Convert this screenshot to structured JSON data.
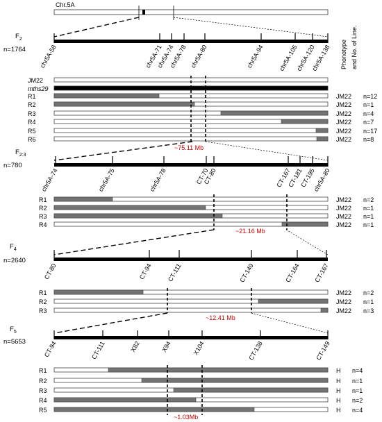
{
  "chromosome": {
    "label": "Chr.5A"
  },
  "headers": {
    "phenotype": "Phonotype",
    "lines": "and No. of Line."
  },
  "panels": [
    {
      "generation": "F",
      "generation_sub": "2",
      "population": "n=1764",
      "markers": [
        "chr5A-58",
        "chr5A-71",
        "chr5A-74",
        "chr5A-78",
        "chr5A-80",
        "chr5A-94",
        "chr5A-105",
        "chr5A-120",
        "chr5A-138"
      ],
      "interval": "~75.11 Mb",
      "rows": [
        {
          "label": "JM22",
          "pheno": "",
          "count": ""
        },
        {
          "label": "mths29",
          "pheno": "",
          "count": "",
          "italic": true
        },
        {
          "label": "R1",
          "pheno": "JM22",
          "count": "n=12"
        },
        {
          "label": "R2",
          "pheno": "JM22",
          "count": "n=1"
        },
        {
          "label": "R3",
          "pheno": "JM22",
          "count": "n=4"
        },
        {
          "label": "R4",
          "pheno": "JM22",
          "count": "n=7"
        },
        {
          "label": "R5",
          "pheno": "JM22",
          "count": "n=17"
        },
        {
          "label": "R6",
          "pheno": "JM22",
          "count": "n=8"
        }
      ]
    },
    {
      "generation": "F",
      "generation_sub": "2:3",
      "population": "n=780",
      "markers": [
        "chr5A-74",
        "chr5A-75",
        "chr5A-78",
        "CT-70",
        "CT-80",
        "CT-167",
        "CT-181",
        "CT-195",
        "chr5A-80"
      ],
      "interval": "~21.16 Mb",
      "rows": [
        {
          "label": "R1",
          "pheno": "JM22",
          "count": "n=2"
        },
        {
          "label": "R2",
          "pheno": "JM22",
          "count": "n=1"
        },
        {
          "label": "R3",
          "pheno": "JM22",
          "count": "n=1"
        },
        {
          "label": "R4",
          "pheno": "JM22",
          "count": "n=1"
        }
      ]
    },
    {
      "generation": "F",
      "generation_sub": "4",
      "population": "n=2640",
      "markers": [
        "CT-80",
        "CT-94",
        "CT-111",
        "CT-149",
        "CT-164",
        "CT-167"
      ],
      "interval": "~12.41 Mb",
      "rows": [
        {
          "label": "R1",
          "pheno": "JM22",
          "count": "n=2"
        },
        {
          "label": "R2",
          "pheno": "JM22",
          "count": "n=1"
        },
        {
          "label": "R3",
          "pheno": "JM22",
          "count": "n=3"
        }
      ]
    },
    {
      "generation": "F",
      "generation_sub": "5",
      "population": "n=5653",
      "markers": [
        "CT-94",
        "CT-111",
        "X82",
        "X94",
        "X104",
        "CT-138",
        "CT-149"
      ],
      "interval": "~1.03Mb",
      "rows": [
        {
          "label": "R1",
          "pheno": "H",
          "count": "n=4"
        },
        {
          "label": "R2",
          "pheno": "H",
          "count": "n=1"
        },
        {
          "label": "R3",
          "pheno": "H",
          "count": "n=1"
        },
        {
          "label": "R4",
          "pheno": "H",
          "count": "n=2"
        },
        {
          "label": "R5",
          "pheno": "H",
          "count": "n=4"
        }
      ]
    }
  ],
  "colors": {
    "bar": "#000000",
    "segment": "#737373",
    "interval_text": "#cc0000"
  }
}
